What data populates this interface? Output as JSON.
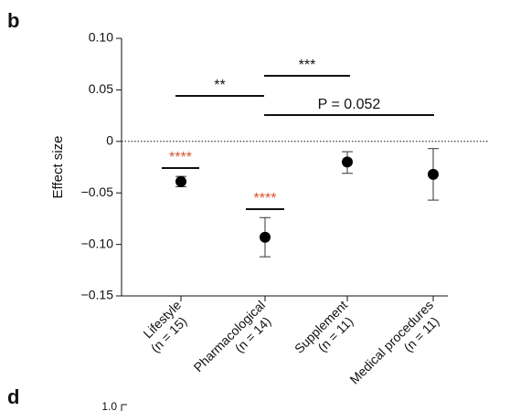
{
  "panel_labels": [
    "b",
    "d"
  ],
  "next_panel_tick": "1.0",
  "chart_data": {
    "type": "errorbar",
    "ylabel": "Effect size",
    "categories": [
      "Lifestyle",
      "Pharmacological",
      "Supplement",
      "Medical procedures"
    ],
    "category_notes": [
      "(n = 15)",
      "(n = 14)",
      "(n = 11)",
      "(n = 11)"
    ],
    "values": [
      -0.039,
      -0.093,
      -0.02,
      -0.032
    ],
    "lower": [
      -0.044,
      -0.112,
      -0.031,
      -0.057
    ],
    "upper": [
      -0.034,
      -0.074,
      -0.01,
      -0.007
    ],
    "color": "#000000",
    "ylim": [
      -0.15,
      0.1
    ],
    "yticks": [
      {
        "value": -0.15,
        "label": "−0.15"
      },
      {
        "value": -0.1,
        "label": "−0.10"
      },
      {
        "value": -0.05,
        "label": "−0.05"
      },
      0,
      {
        "value": 0.05,
        "label": "0.05"
      },
      {
        "value": 0.1,
        "label": "0.10"
      }
    ],
    "reference_line": 0,
    "annotations": [
      {
        "text": "****",
        "color": "#d9532c"
      },
      {
        "text": "****",
        "color": "#d9532c"
      },
      {
        "text": "**",
        "color": "#111111"
      },
      {
        "text": "***",
        "color": "#111111"
      },
      {
        "text": "P = 0.052",
        "color": "#111111"
      }
    ]
  }
}
